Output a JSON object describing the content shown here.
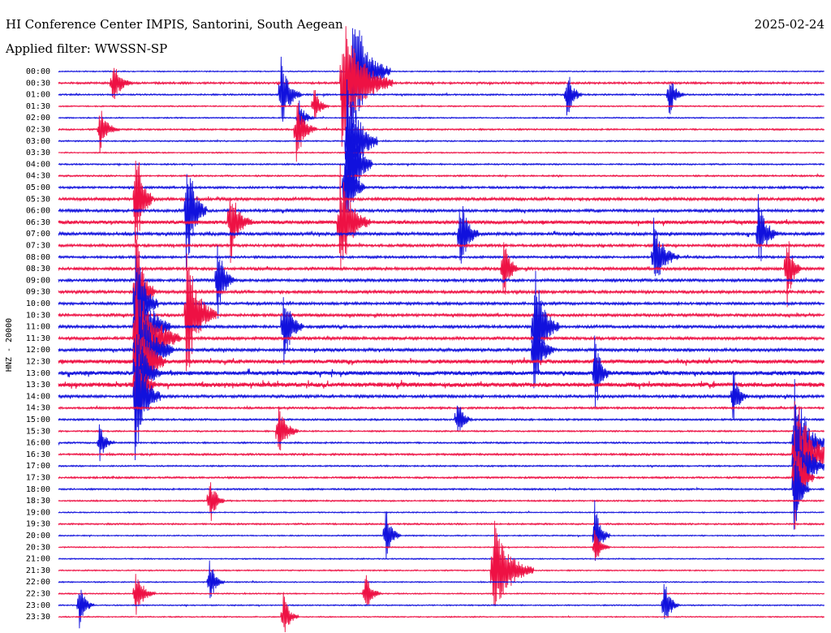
{
  "header": {
    "station_title": "HI Conference Center IMPIS, Santorini, South Aegean",
    "filter_label": "Applied filter: WWSSN-SP",
    "date": "2025-02-24"
  },
  "colors": {
    "trace_even": "#1111dd",
    "trace_odd": "#ee1144",
    "background": "#ffffff",
    "text": "#000000"
  },
  "chart_data": {
    "type": "line",
    "title": "HI Conference Center IMPIS, Santorini, South Aegean",
    "subtitle": "Applied filter: WWSSN-SP",
    "ylabel": "HNZ - 20000",
    "xlabel": "",
    "grid": false,
    "row_labels": [
      "00:00",
      "00:30",
      "01:00",
      "01:30",
      "02:00",
      "02:30",
      "03:00",
      "03:30",
      "04:00",
      "04:30",
      "05:00",
      "05:30",
      "06:00",
      "06:30",
      "07:00",
      "07:30",
      "08:00",
      "08:30",
      "09:00",
      "09:30",
      "10:00",
      "10:30",
      "11:00",
      "11:30",
      "12:00",
      "12:30",
      "13:00",
      "13:30",
      "14:00",
      "14:30",
      "15:00",
      "15:30",
      "16:00",
      "16:30",
      "17:00",
      "17:30",
      "18:00",
      "18:30",
      "19:00",
      "19:30",
      "20:00",
      "20:30",
      "21:00",
      "21:30",
      "22:00",
      "22:30",
      "23:00",
      "23:30"
    ],
    "trace_minutes": 30,
    "row_activity": [
      0.05,
      0.18,
      0.12,
      0.07,
      0.06,
      0.12,
      0.08,
      0.06,
      0.1,
      0.12,
      0.2,
      0.32,
      0.3,
      0.45,
      0.35,
      0.28,
      0.22,
      0.3,
      0.3,
      0.32,
      0.28,
      0.3,
      0.3,
      0.32,
      0.35,
      0.5,
      0.55,
      0.6,
      0.3,
      0.18,
      0.15,
      0.1,
      0.12,
      0.16,
      0.1,
      0.15,
      0.12,
      0.1,
      0.05,
      0.12,
      0.06,
      0.05,
      0.05,
      0.06,
      0.05,
      0.06,
      0.06,
      0.05
    ],
    "events": [
      {
        "row": 0,
        "minute": 11.5,
        "amplitude": 14,
        "duration_min": 1.5
      },
      {
        "row": 1,
        "minute": 2.1,
        "amplitude": 5,
        "duration_min": 0.8
      },
      {
        "row": 1,
        "minute": 11.1,
        "amplitude": 14,
        "duration_min": 2.0
      },
      {
        "row": 2,
        "minute": 8.7,
        "amplitude": 8,
        "duration_min": 0.8
      },
      {
        "row": 2,
        "minute": 19.9,
        "amplitude": 6,
        "duration_min": 0.6
      },
      {
        "row": 2,
        "minute": 23.9,
        "amplitude": 5,
        "duration_min": 0.6
      },
      {
        "row": 3,
        "minute": 10.0,
        "amplitude": 4,
        "duration_min": 0.6
      },
      {
        "row": 4,
        "minute": 9.4,
        "amplitude": 4,
        "duration_min": 0.6
      },
      {
        "row": 5,
        "minute": 1.6,
        "amplitude": 5,
        "duration_min": 0.8
      },
      {
        "row": 5,
        "minute": 9.3,
        "amplitude": 7,
        "duration_min": 0.8
      },
      {
        "row": 6,
        "minute": 11.3,
        "amplitude": 14,
        "duration_min": 1.2
      },
      {
        "row": 8,
        "minute": 11.3,
        "amplitude": 14,
        "duration_min": 1.0
      },
      {
        "row": 10,
        "minute": 11.2,
        "amplitude": 10,
        "duration_min": 0.8
      },
      {
        "row": 11,
        "minute": 3.0,
        "amplitude": 14,
        "duration_min": 0.7
      },
      {
        "row": 12,
        "minute": 5.0,
        "amplitude": 14,
        "duration_min": 0.8
      },
      {
        "row": 13,
        "minute": 6.7,
        "amplitude": 9,
        "duration_min": 0.9
      },
      {
        "row": 13,
        "minute": 11.0,
        "amplitude": 12,
        "duration_min": 1.2
      },
      {
        "row": 14,
        "minute": 15.7,
        "amplitude": 9,
        "duration_min": 0.8
      },
      {
        "row": 14,
        "minute": 27.4,
        "amplitude": 8,
        "duration_min": 0.8
      },
      {
        "row": 16,
        "minute": 23.3,
        "amplitude": 8,
        "duration_min": 1.0
      },
      {
        "row": 17,
        "minute": 17.4,
        "amplitude": 9,
        "duration_min": 0.6
      },
      {
        "row": 17,
        "minute": 28.5,
        "amplitude": 9,
        "duration_min": 0.6
      },
      {
        "row": 18,
        "minute": 6.2,
        "amplitude": 9,
        "duration_min": 0.7
      },
      {
        "row": 19,
        "minute": 3.0,
        "amplitude": 14,
        "duration_min": 0.8
      },
      {
        "row": 20,
        "minute": 3.0,
        "amplitude": 14,
        "duration_min": 0.9
      },
      {
        "row": 21,
        "minute": 5.0,
        "amplitude": 14,
        "duration_min": 1.2
      },
      {
        "row": 22,
        "minute": 3.0,
        "amplitude": 14,
        "duration_min": 1.4
      },
      {
        "row": 22,
        "minute": 8.8,
        "amplitude": 10,
        "duration_min": 0.8
      },
      {
        "row": 22,
        "minute": 18.6,
        "amplitude": 14,
        "duration_min": 1.0
      },
      {
        "row": 23,
        "minute": 3.0,
        "amplitude": 14,
        "duration_min": 1.8
      },
      {
        "row": 24,
        "minute": 3.0,
        "amplitude": 14,
        "duration_min": 1.5
      },
      {
        "row": 24,
        "minute": 18.6,
        "amplitude": 10,
        "duration_min": 0.8
      },
      {
        "row": 25,
        "minute": 3.0,
        "amplitude": 14,
        "duration_min": 1.2
      },
      {
        "row": 26,
        "minute": 3.0,
        "amplitude": 12,
        "duration_min": 1.0
      },
      {
        "row": 26,
        "minute": 21.0,
        "amplitude": 9,
        "duration_min": 0.6
      },
      {
        "row": 27,
        "minute": 3.0,
        "amplitude": 12,
        "duration_min": 0.8
      },
      {
        "row": 28,
        "minute": 3.0,
        "amplitude": 14,
        "duration_min": 1.0
      },
      {
        "row": 28,
        "minute": 26.4,
        "amplitude": 6,
        "duration_min": 0.6
      },
      {
        "row": 30,
        "minute": 15.6,
        "amplitude": 5,
        "duration_min": 0.6
      },
      {
        "row": 31,
        "minute": 8.6,
        "amplitude": 6,
        "duration_min": 0.8
      },
      {
        "row": 32,
        "minute": 1.6,
        "amplitude": 4,
        "duration_min": 0.6
      },
      {
        "row": 32,
        "minute": 28.8,
        "amplitude": 14,
        "duration_min": 1.2
      },
      {
        "row": 33,
        "minute": 28.8,
        "amplitude": 14,
        "duration_min": 1.6
      },
      {
        "row": 34,
        "minute": 28.8,
        "amplitude": 14,
        "duration_min": 1.2
      },
      {
        "row": 35,
        "minute": 28.8,
        "amplitude": 12,
        "duration_min": 0.8
      },
      {
        "row": 36,
        "minute": 28.8,
        "amplitude": 10,
        "duration_min": 0.6
      },
      {
        "row": 37,
        "minute": 5.9,
        "amplitude": 6,
        "duration_min": 0.6
      },
      {
        "row": 40,
        "minute": 12.8,
        "amplitude": 6,
        "duration_min": 0.6
      },
      {
        "row": 40,
        "minute": 21.0,
        "amplitude": 7,
        "duration_min": 0.6
      },
      {
        "row": 41,
        "minute": 21.0,
        "amplitude": 4,
        "duration_min": 0.6
      },
      {
        "row": 43,
        "minute": 17.0,
        "amplitude": 11,
        "duration_min": 1.6
      },
      {
        "row": 44,
        "minute": 5.9,
        "amplitude": 5,
        "duration_min": 0.6
      },
      {
        "row": 45,
        "minute": 3.0,
        "amplitude": 5,
        "duration_min": 0.8
      },
      {
        "row": 45,
        "minute": 12.0,
        "amplitude": 5,
        "duration_min": 0.6
      },
      {
        "row": 46,
        "minute": 0.8,
        "amplitude": 5,
        "duration_min": 0.6
      },
      {
        "row": 46,
        "minute": 23.7,
        "amplitude": 6,
        "duration_min": 0.6
      },
      {
        "row": 47,
        "minute": 8.8,
        "amplitude": 5,
        "duration_min": 0.6
      }
    ]
  }
}
